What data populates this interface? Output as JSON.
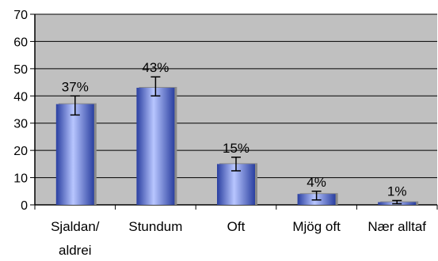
{
  "chart_data": {
    "type": "bar",
    "title": "",
    "xlabel": "",
    "ylabel": "",
    "categories": [
      [
        "Sjaldan/",
        "aldrei"
      ],
      [
        "Stundum"
      ],
      [
        "Oft"
      ],
      [
        "Mjög oft"
      ],
      [
        "Nær alltaf"
      ]
    ],
    "values": [
      37,
      43,
      15,
      4,
      1
    ],
    "value_labels": [
      "37%",
      "43%",
      "15%",
      "4%",
      "1%"
    ],
    "error_bars": [
      [
        33,
        40
      ],
      [
        40,
        47
      ],
      [
        12.5,
        17.5
      ],
      [
        1.8,
        5.0
      ],
      [
        0.4,
        1.6
      ]
    ],
    "ylim": [
      0,
      70
    ],
    "yticks": [
      0,
      10,
      20,
      30,
      40,
      50,
      60,
      70
    ],
    "grid": true,
    "legend": "none",
    "colors": {
      "plot_background": "#c0c0c0",
      "bar_dark": "#2a3fa0",
      "bar_light": "#b8c6ff",
      "bar_shadow": "#8a8a8a",
      "gridline": "#000000"
    }
  }
}
